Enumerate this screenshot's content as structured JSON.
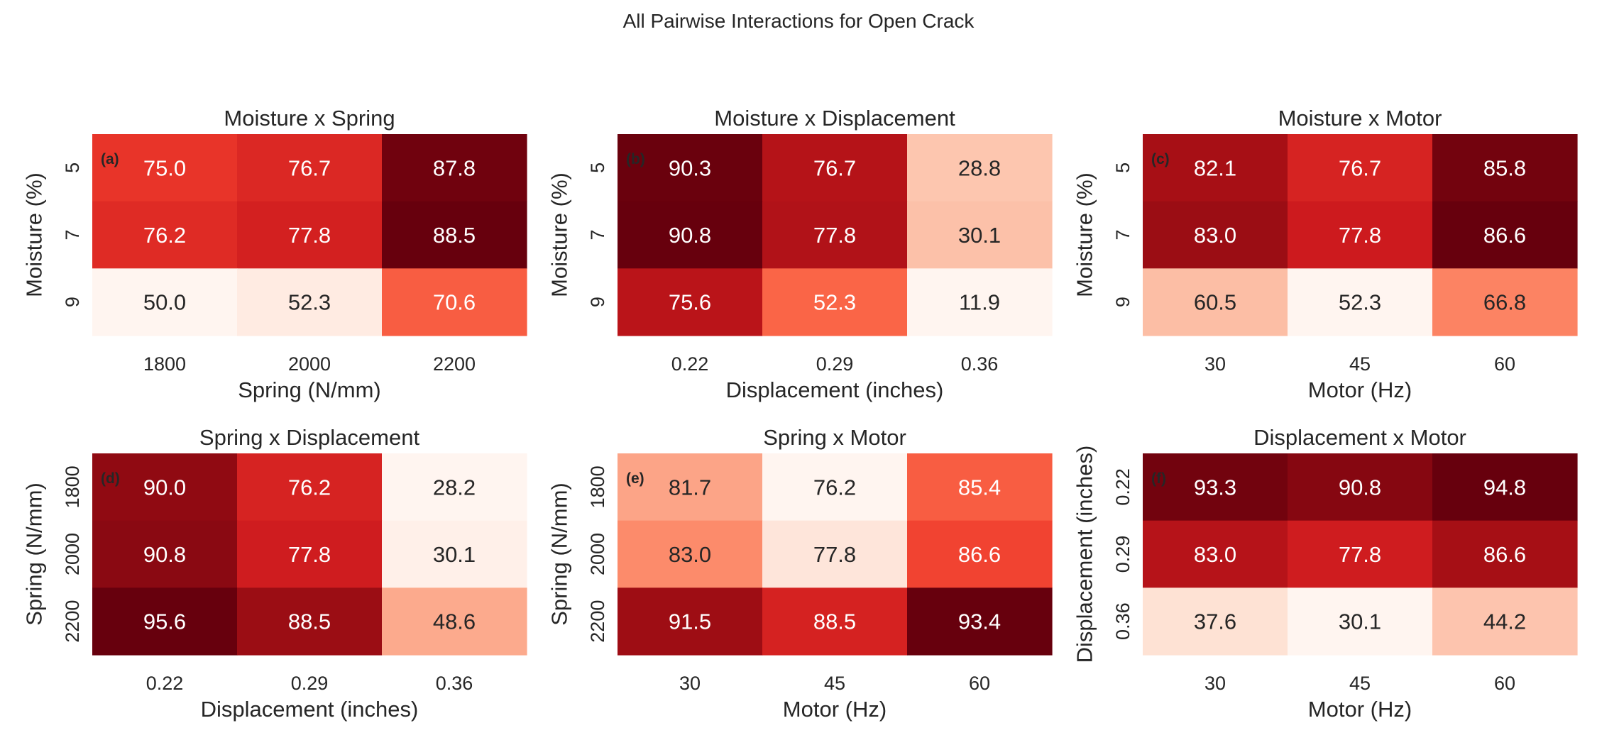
{
  "figure": {
    "title": "All Pairwise Interactions for Open Crack"
  },
  "chart_data": [
    {
      "type": "heatmap",
      "panel_label": "(a)",
      "title": "Moisture x Spring",
      "xlabel": "Spring (N/mm)",
      "ylabel": "Moisture (%)",
      "x_categories": [
        "1800",
        "2000",
        "2200"
      ],
      "y_categories": [
        "5",
        "7",
        "9"
      ],
      "values": [
        [
          75.0,
          76.7,
          87.8
        ],
        [
          76.2,
          77.8,
          88.5
        ],
        [
          50.0,
          52.3,
          70.6
        ]
      ],
      "value_labels": [
        [
          "75.0",
          "76.7",
          "87.8"
        ],
        [
          "76.2",
          "77.8",
          "88.5"
        ],
        [
          "50.0",
          "52.3",
          "70.6"
        ]
      ]
    },
    {
      "type": "heatmap",
      "panel_label": "(b)",
      "title": "Moisture x Displacement",
      "xlabel": "Displacement (inches)",
      "ylabel": "Moisture (%)",
      "x_categories": [
        "0.22",
        "0.29",
        "0.36"
      ],
      "y_categories": [
        "5",
        "7",
        "9"
      ],
      "values": [
        [
          90.3,
          76.7,
          28.8
        ],
        [
          90.8,
          77.8,
          30.1
        ],
        [
          75.6,
          52.3,
          11.9
        ]
      ],
      "value_labels": [
        [
          "90.3",
          "76.7",
          "28.8"
        ],
        [
          "90.8",
          "77.8",
          "30.1"
        ],
        [
          "75.6",
          "52.3",
          "11.9"
        ]
      ]
    },
    {
      "type": "heatmap",
      "panel_label": "(c)",
      "title": "Moisture x Motor",
      "xlabel": "Motor (Hz)",
      "ylabel": "Moisture (%)",
      "x_categories": [
        "30",
        "45",
        "60"
      ],
      "y_categories": [
        "5",
        "7",
        "9"
      ],
      "values": [
        [
          82.1,
          76.7,
          85.8
        ],
        [
          83.0,
          77.8,
          86.6
        ],
        [
          60.5,
          52.3,
          66.8
        ]
      ],
      "value_labels": [
        [
          "82.1",
          "76.7",
          "85.8"
        ],
        [
          "83.0",
          "77.8",
          "86.6"
        ],
        [
          "60.5",
          "52.3",
          "66.8"
        ]
      ]
    },
    {
      "type": "heatmap",
      "panel_label": "(d)",
      "title": "Spring x Displacement",
      "xlabel": "Displacement (inches)",
      "ylabel": "Spring (N/mm)",
      "x_categories": [
        "0.22",
        "0.29",
        "0.36"
      ],
      "y_categories": [
        "1800",
        "2000",
        "2200"
      ],
      "values": [
        [
          90.0,
          76.2,
          28.2
        ],
        [
          90.8,
          77.8,
          30.1
        ],
        [
          95.6,
          88.5,
          48.6
        ]
      ],
      "value_labels": [
        [
          "90.0",
          "76.2",
          "28.2"
        ],
        [
          "90.8",
          "77.8",
          "30.1"
        ],
        [
          "95.6",
          "88.5",
          "48.6"
        ]
      ]
    },
    {
      "type": "heatmap",
      "panel_label": "(e)",
      "title": "Spring x Motor",
      "xlabel": "Motor (Hz)",
      "ylabel": "Spring (N/mm)",
      "x_categories": [
        "30",
        "45",
        "60"
      ],
      "y_categories": [
        "1800",
        "2000",
        "2200"
      ],
      "values": [
        [
          81.7,
          76.2,
          85.4
        ],
        [
          83.0,
          77.8,
          86.6
        ],
        [
          91.5,
          88.5,
          93.4
        ]
      ],
      "value_labels": [
        [
          "81.7",
          "76.2",
          "85.4"
        ],
        [
          "83.0",
          "77.8",
          "86.6"
        ],
        [
          "91.5",
          "88.5",
          "93.4"
        ]
      ]
    },
    {
      "type": "heatmap",
      "panel_label": "(f)",
      "title": "Displacement x Motor",
      "xlabel": "Motor (Hz)",
      "ylabel": "Displacement (inches)",
      "x_categories": [
        "30",
        "45",
        "60"
      ],
      "y_categories": [
        "0.22",
        "0.29",
        "0.36"
      ],
      "values": [
        [
          93.3,
          90.8,
          94.8
        ],
        [
          83.0,
          77.8,
          86.6
        ],
        [
          37.6,
          30.1,
          44.2
        ]
      ],
      "value_labels": [
        [
          "93.3",
          "90.8",
          "94.8"
        ],
        [
          "83.0",
          "77.8",
          "86.6"
        ],
        [
          "37.6",
          "30.1",
          "44.2"
        ]
      ]
    }
  ],
  "colormap": "Reds"
}
